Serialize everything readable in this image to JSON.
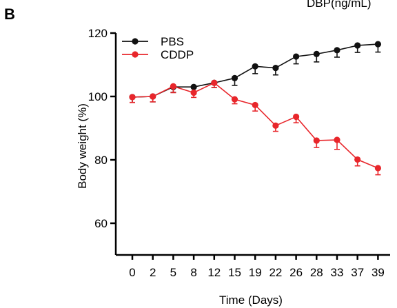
{
  "panel_label": "B",
  "header_fragment": "DBP(ng/mL)",
  "chart_data": {
    "type": "line",
    "categories": [
      "0",
      "2",
      "5",
      "8",
      "12",
      "15",
      "19",
      "22",
      "26",
      "28",
      "33",
      "37",
      "39"
    ],
    "xlabel": "Time (Days)",
    "ylabel": "Body weight (%)",
    "ylim": [
      50,
      120
    ],
    "yticks": [
      60,
      80,
      100,
      120
    ],
    "legend": "top-left",
    "series": [
      {
        "name": "PBS",
        "color": "#111111",
        "values": [
          99.8,
          100.0,
          103.0,
          103.0,
          104.3,
          105.8,
          109.5,
          109.0,
          112.6,
          113.4,
          114.6,
          116.1,
          116.5
        ],
        "errors": [
          1.7,
          1.7,
          1.7,
          1.5,
          1.5,
          2.3,
          2.3,
          2.2,
          2.3,
          2.5,
          2.2,
          2.2,
          2.5
        ]
      },
      {
        "name": "CDDP",
        "color": "#e8262b",
        "values": [
          99.8,
          100.0,
          103.2,
          101.2,
          104.3,
          99.1,
          97.3,
          90.8,
          93.6,
          86.1,
          86.3,
          80.1,
          77.4
        ],
        "errors": [
          1.7,
          1.7,
          2.0,
          1.5,
          1.5,
          1.4,
          1.9,
          1.8,
          1.9,
          2.2,
          3.0,
          2.0,
          2.1
        ]
      }
    ]
  }
}
